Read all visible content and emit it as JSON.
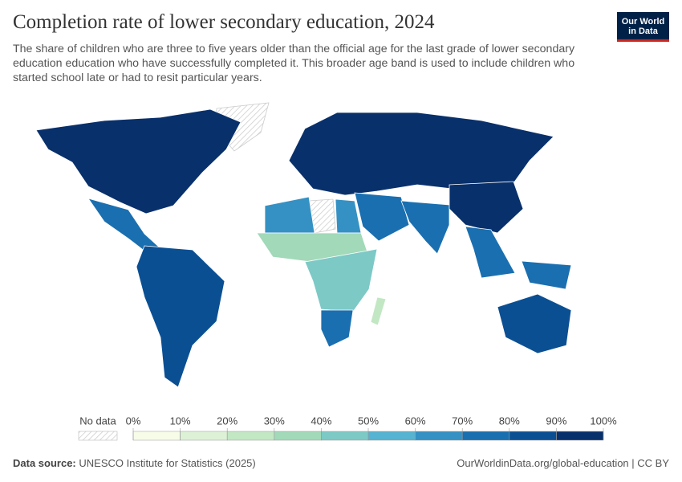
{
  "header": {
    "title": "Completion rate of lower secondary education, 2024",
    "subtitle": "The share of children who are three to five years older than the official age for the last grade of lower secondary education education who have successfully completed it. This broader age band is used to include children who started school late or had to resit particular years.",
    "logo": [
      "Our World",
      "in Data"
    ]
  },
  "map": {
    "regions": [
      {
        "value": 95
      },
      {
        "value": 74
      },
      {
        "value": 84
      },
      {
        "value": 96
      },
      {
        "value": 64
      },
      {
        "value": 32
      },
      {
        "value": 46
      },
      {
        "value": 78
      },
      {
        "value": 72
      },
      {
        "value": 71
      },
      {
        "value": 93
      },
      {
        "value": 79
      },
      {
        "value": 88
      },
      {
        "value": 25
      }
    ],
    "legend": {
      "no_data": "No data",
      "ticks": [
        {
          "value": 0,
          "label": "0%"
        },
        {
          "value": 10,
          "label": "10%"
        },
        {
          "value": 20,
          "label": "20%"
        },
        {
          "value": 30,
          "label": "30%"
        },
        {
          "value": 40,
          "label": "40%"
        },
        {
          "value": 50,
          "label": "50%"
        },
        {
          "value": 60,
          "label": "60%"
        },
        {
          "value": 70,
          "label": "70%"
        },
        {
          "value": 80,
          "label": "80%"
        },
        {
          "value": 90,
          "label": "90%"
        },
        {
          "value": 100,
          "label": "100%"
        }
      ],
      "colors": [
        "#f7fce9",
        "#dcf1d6",
        "#c2e7c3",
        "#a1d9b9",
        "#7cc9c6",
        "#56b3d1",
        "#3591c3",
        "#1a6fb0",
        "#0b4f93",
        "#08306b"
      ]
    }
  },
  "footer": {
    "source_label": "Data source:",
    "source": "UNESCO Institute for Statistics (2025)",
    "url": "OurWorldinData.org/global-education | CC BY"
  }
}
